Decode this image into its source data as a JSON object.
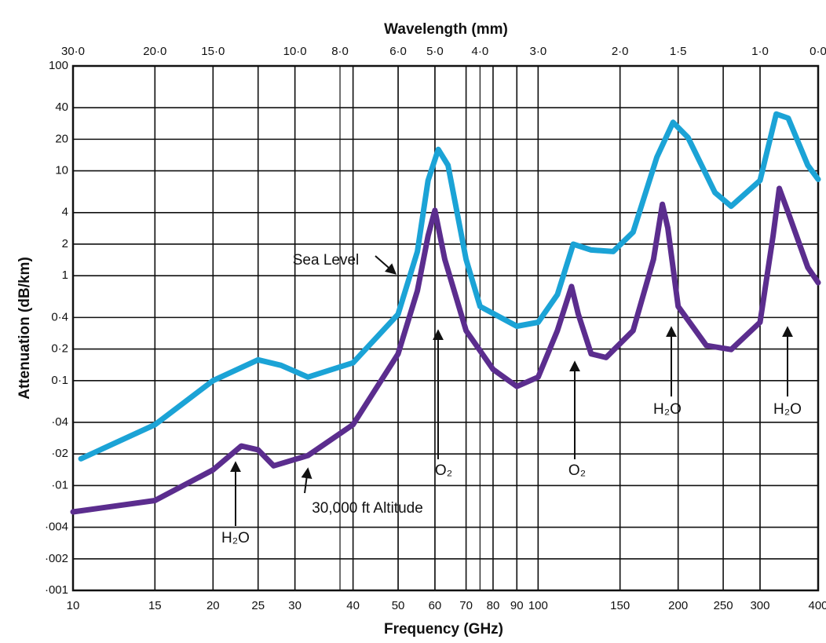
{
  "chart_data": {
    "type": "line",
    "xlabel": "Frequency (GHz)",
    "x2label": "Wavelength (mm)",
    "ylabel": "Attenuation (dB/km)",
    "xscale": "log",
    "yscale": "log",
    "grid": true,
    "xlim": [
      10,
      400
    ],
    "ylim": [
      0.001,
      100
    ],
    "xticks": [
      10,
      15,
      20,
      25,
      30,
      40,
      50,
      60,
      70,
      80,
      90,
      100,
      150,
      200,
      250,
      300,
      400
    ],
    "x2lim": [
      30,
      0.75
    ],
    "x2ticks": [
      {
        "value": 30,
        "label": "30·0"
      },
      {
        "value": 20,
        "label": "20·0"
      },
      {
        "value": 15,
        "label": "15·0"
      },
      {
        "value": 10,
        "label": "10·0"
      },
      {
        "value": 8,
        "label": "8·0"
      },
      {
        "value": 6,
        "label": "6·0"
      },
      {
        "value": 5,
        "label": "5·0"
      },
      {
        "value": 4,
        "label": "4·0"
      },
      {
        "value": 3,
        "label": "3·0"
      },
      {
        "value": 2,
        "label": "2·0"
      },
      {
        "value": 1.5,
        "label": "1·5"
      },
      {
        "value": 1,
        "label": "1·0"
      },
      {
        "value": 0.75,
        "label": "0·0"
      }
    ],
    "yticks": [
      100,
      40,
      20,
      10,
      4,
      2,
      1,
      {
        "value": 0.4,
        "label": "0·4"
      },
      {
        "value": 0.2,
        "label": "0·2"
      },
      {
        "value": 0.1,
        "label": "0·1"
      },
      {
        "value": 0.04,
        "label": "·04"
      },
      {
        "value": 0.02,
        "label": "·02"
      },
      {
        "value": 0.01,
        "label": "·01"
      },
      {
        "value": 0.004,
        "label": "·004"
      },
      {
        "value": 0.002,
        "label": "·002"
      },
      {
        "value": 0.001,
        "label": "·001"
      }
    ],
    "series": [
      {
        "name": "Sea Level",
        "color": "#1ba3d6",
        "x": [
          10.4,
          15,
          20,
          25,
          28,
          32,
          40,
          50,
          55,
          58,
          61,
          64,
          70,
          75,
          90,
          100,
          110,
          119,
          130,
          145,
          160,
          180,
          195,
          210,
          240,
          260,
          300,
          325,
          345,
          380,
          400
        ],
        "values": [
          0.018,
          0.038,
          0.1,
          0.158,
          0.14,
          0.108,
          0.148,
          0.43,
          1.7,
          8.1,
          16,
          11.3,
          1.43,
          0.51,
          0.33,
          0.36,
          0.66,
          2.0,
          1.76,
          1.7,
          2.6,
          13.5,
          29,
          20.8,
          6.2,
          4.6,
          8.1,
          34.8,
          31.8,
          11.3,
          8.3
        ]
      },
      {
        "name": "30,000 ft Altitude",
        "color": "#5b2d8e",
        "x": [
          10,
          15,
          20,
          23,
          25,
          27,
          32,
          40,
          50,
          55,
          58,
          60,
          63,
          70,
          80,
          90,
          100,
          110,
          118,
          122,
          130,
          140,
          160,
          177,
          185,
          190,
          200,
          230,
          260,
          300,
          320,
          330,
          345,
          380,
          400
        ],
        "values": [
          0.0056,
          0.0072,
          0.0141,
          0.0238,
          0.0219,
          0.0154,
          0.0193,
          0.038,
          0.18,
          0.72,
          2.4,
          4.2,
          1.43,
          0.3,
          0.128,
          0.088,
          0.108,
          0.3,
          0.79,
          0.43,
          0.18,
          0.166,
          0.3,
          1.43,
          4.8,
          2.86,
          0.51,
          0.216,
          0.198,
          0.36,
          2.4,
          6.8,
          4.0,
          1.2,
          0.86
        ]
      }
    ],
    "annotations": [
      "Sea Level",
      "30,000 ft Altitude",
      "H₂O",
      "O₂",
      "O₂",
      "H₂O",
      "H₂O"
    ]
  }
}
